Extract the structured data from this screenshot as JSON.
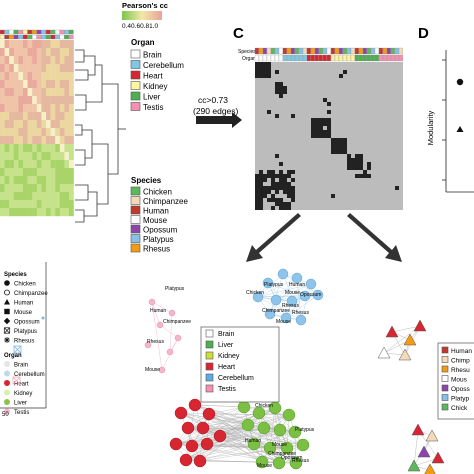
{
  "panel_a": {
    "colorbar": {
      "title": "Pearson's cc",
      "ticks": "0.40.60.81.0"
    },
    "organ_legend": {
      "title": "Organ",
      "items": [
        {
          "label": "Brain",
          "color": "#ffffff"
        },
        {
          "label": "Cerebellum",
          "color": "#7ec8e3"
        },
        {
          "label": "Heart",
          "color": "#d72631"
        },
        {
          "label": "Kidney",
          "color": "#fff4a3"
        },
        {
          "label": "Liver",
          "color": "#4caf50"
        },
        {
          "label": "Testis",
          "color": "#f78fb3"
        }
      ]
    },
    "species_legend": {
      "title": "Species",
      "items": [
        {
          "label": "Chicken",
          "color": "#5cb85c"
        },
        {
          "label": "Chimpanzee",
          "color": "#f5d9b8"
        },
        {
          "label": "Human",
          "color": "#c0392b"
        },
        {
          "label": "Mouse",
          "color": "#ffffff"
        },
        {
          "label": "Opossum",
          "color": "#8e44ad"
        },
        {
          "label": "Platypus",
          "color": "#85c1e9"
        },
        {
          "label": "Rhesus",
          "color": "#f39c12"
        }
      ]
    }
  },
  "arrow_label": {
    "line1": "cc>0.73",
    "line2": "(290 edges)"
  },
  "panel_c": {
    "letter": "C",
    "row_labels": [
      "Species",
      "Organ"
    ]
  },
  "panel_d": {
    "letter": "D",
    "ylabel": "Modularity"
  },
  "panel_e_left": {
    "species_legend": {
      "title": "Species",
      "items": [
        {
          "label": "Chicken",
          "symbol": "circle"
        },
        {
          "label": "Chimpanzee",
          "symbol": "circle-open"
        },
        {
          "label": "Human",
          "symbol": "triangle"
        },
        {
          "label": "Mouse",
          "symbol": "square"
        },
        {
          "label": "Opossum",
          "symbol": "diamond"
        },
        {
          "label": "Platypus",
          "symbol": "boxcross"
        },
        {
          "label": "Rhesus",
          "symbol": "asterisk"
        }
      ]
    },
    "organ_legend": {
      "title": "Organ",
      "items": [
        {
          "label": "Brain",
          "color": "#e6e6e6"
        },
        {
          "label": "Cerebellum",
          "color": "#bcd9f2"
        },
        {
          "label": "Heart",
          "color": "#d72631"
        },
        {
          "label": "Kidney",
          "color": "#d8f0a8"
        },
        {
          "label": "Liver",
          "color": "#8bc34a"
        },
        {
          "label": "Testis",
          "color": "#f5b7c8"
        }
      ]
    },
    "axis_tick": "50"
  },
  "network_center": {
    "legend": [
      {
        "label": "Brain",
        "color": "#ffffff"
      },
      {
        "label": "Liver",
        "color": "#4caf50"
      },
      {
        "label": "Kidney",
        "color": "#cddc39"
      },
      {
        "label": "Heart",
        "color": "#d72631"
      },
      {
        "label": "Cerebellum",
        "color": "#5dade2"
      },
      {
        "label": "Testis",
        "color": "#f78fb3"
      }
    ],
    "pink_labels": [
      "Platypus",
      "Human",
      "Chimpanzee",
      "Rhesus",
      "Mouse"
    ],
    "blue_labels": [
      "Chicken",
      "Platypus",
      "Human",
      "Mouse",
      "Opossum",
      "Chimpanzee",
      "Rhesus",
      "Rhesus",
      "Mouse"
    ],
    "bottom_labels": [
      "Chicken",
      "Platypus",
      "Human",
      "Mouse",
      "Mouse",
      "Chimpanzee",
      "Opossum",
      "Rhesus"
    ]
  },
  "network_right": {
    "legend": [
      {
        "label": "Human",
        "color": "#c0392b"
      },
      {
        "label": "Chimp",
        "color": "#f5d9b8"
      },
      {
        "label": "Rhesu",
        "color": "#f39c12"
      },
      {
        "label": "Mous",
        "color": "#ffffff"
      },
      {
        "label": "Oposs",
        "color": "#8e44ad"
      },
      {
        "label": "Platyp",
        "color": "#85c1e9"
      },
      {
        "label": "Chick",
        "color": "#5cb85c"
      }
    ]
  }
}
